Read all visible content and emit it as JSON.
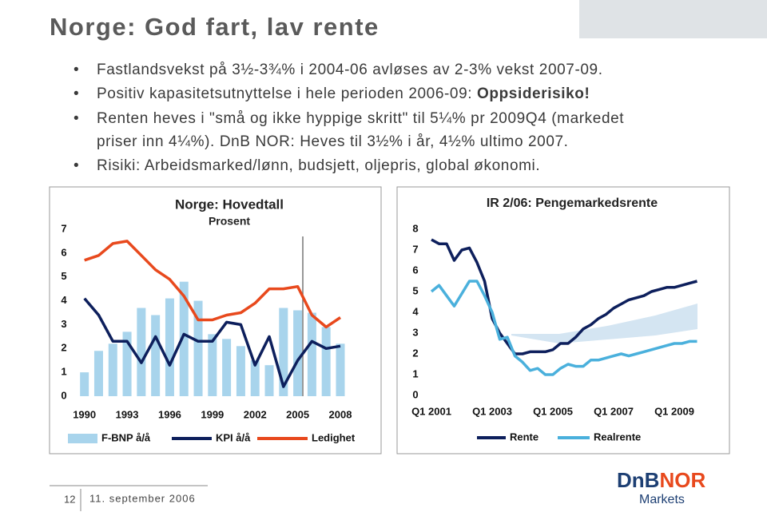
{
  "title": "Norge: God fart, lav rente",
  "bullets": [
    {
      "text": "Fastlandsvekst på 3½-3¾% i 2004-06 avløses av 2-3% vekst 2007-09."
    },
    {
      "text": "Positiv kapasitetsutnyttelse i hele perioden 2006-09: ",
      "emphasis": "Oppsiderisiko!"
    },
    {
      "text": "Renten heves i \"små og ikke hyppige skritt\" til 5¼% pr 2009Q4 (markedet",
      "continuation": "priser inn 4¼%). DnB NOR: Heves til 3½% i år, 4½% ultimo 2007."
    },
    {
      "text": "Risiki: Arbeidsmarked/lønn, budsjett, oljepris, global økonomi."
    }
  ],
  "footer": {
    "page": "12",
    "date": "11. september 2006"
  },
  "logo": {
    "brand_a": "DnB",
    "brand_b": "NOR",
    "unit": "Markets"
  },
  "chart_data": [
    {
      "type": "combo",
      "title": "Norge: Hovedtall",
      "subtitle": "Prosent",
      "x": [
        1990,
        1991,
        1992,
        1993,
        1994,
        1995,
        1996,
        1997,
        1998,
        1999,
        2000,
        2001,
        2002,
        2003,
        2004,
        2005,
        2006,
        2007,
        2008
      ],
      "xlim": [
        1989.4,
        2008.9
      ],
      "xticks": [
        1990,
        1993,
        1996,
        1999,
        2002,
        2005,
        2008
      ],
      "ylim": [
        0,
        7
      ],
      "yticks": [
        0,
        1,
        2,
        3,
        4,
        5,
        6,
        7
      ],
      "series": [
        {
          "name": "F-BNP å/å",
          "type": "bar",
          "color": "#a8d4ec",
          "values": [
            1.0,
            1.9,
            2.2,
            2.7,
            3.7,
            3.4,
            4.1,
            4.8,
            4.0,
            2.6,
            2.4,
            2.1,
            1.5,
            1.3,
            3.7,
            3.6,
            3.5,
            2.9,
            2.2
          ]
        },
        {
          "name": "KPI å/å",
          "type": "line",
          "color": "#0d1f5c",
          "values": [
            4.1,
            3.4,
            2.3,
            2.3,
            1.4,
            2.5,
            1.3,
            2.6,
            2.3,
            2.3,
            3.1,
            3.0,
            1.3,
            2.5,
            0.4,
            1.5,
            2.3,
            2.0,
            2.1
          ]
        },
        {
          "name": "Ledighet",
          "type": "line",
          "color": "#e8491d",
          "values": [
            5.7,
            5.9,
            6.4,
            6.5,
            5.9,
            5.3,
            4.9,
            4.2,
            3.2,
            3.2,
            3.4,
            3.5,
            3.9,
            4.5,
            4.5,
            4.6,
            3.4,
            2.9,
            3.3
          ]
        }
      ]
    },
    {
      "type": "line",
      "title": "IR 2/06: Pengemarkedsrente",
      "categories": [
        "Q1 2001",
        null,
        null,
        null,
        null,
        null,
        null,
        null,
        "Q1 2003",
        null,
        null,
        null,
        null,
        null,
        null,
        null,
        "Q1 2005",
        null,
        null,
        null,
        null,
        null,
        null,
        null,
        "Q1 2007",
        null,
        null,
        null,
        null,
        null,
        null,
        null,
        "Q1 2009",
        null,
        null,
        null
      ],
      "ylim": [
        0,
        8
      ],
      "yticks": [
        0,
        1,
        2,
        3,
        4,
        5,
        6,
        7,
        8
      ],
      "series": [
        {
          "name": "Rente",
          "color": "#0d1f5c",
          "values": [
            7.5,
            7.3,
            7.3,
            6.5,
            7.0,
            7.1,
            6.4,
            5.5,
            3.7,
            3.0,
            2.5,
            2.0,
            2.0,
            2.1,
            2.1,
            2.1,
            2.2,
            2.5,
            2.5,
            2.8,
            3.2,
            3.4,
            3.7,
            3.9,
            4.2,
            4.4,
            4.6,
            4.7,
            4.8,
            5.0,
            5.1,
            5.2,
            5.2,
            5.3,
            5.4,
            5.5
          ]
        },
        {
          "name": "Realrente",
          "color": "#4ab0dc",
          "values": [
            5.0,
            5.3,
            4.8,
            4.3,
            4.9,
            5.5,
            5.5,
            4.8,
            4.0,
            2.7,
            2.8,
            1.9,
            1.6,
            1.2,
            1.3,
            1.0,
            1.0,
            1.3,
            1.5,
            1.4,
            1.4,
            1.7,
            1.7,
            1.8,
            1.9,
            2.0,
            1.9,
            2.0,
            2.1,
            2.2,
            2.3,
            2.4,
            2.5,
            2.5,
            2.6,
            2.6
          ]
        }
      ]
    }
  ]
}
